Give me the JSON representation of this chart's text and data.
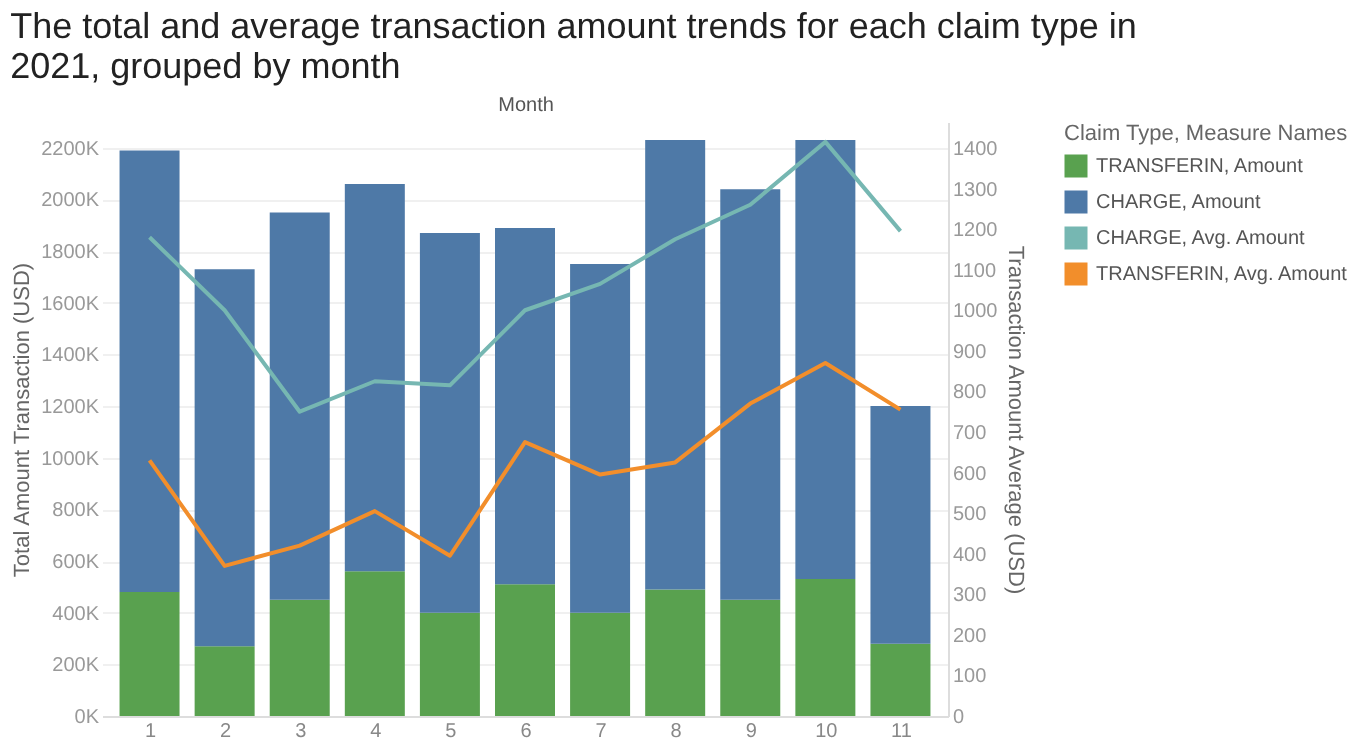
{
  "chart_data": {
    "type": "bar",
    "title": "The total and average transaction amount trends for each claim type in 2021, grouped by month",
    "xlabel": "Month",
    "ylabel": "Total Amount Transaction (USD)",
    "y2label": "Transaction Amount Average (USD)",
    "legend_title": "Claim Type, Measure Names",
    "categories": [
      "1",
      "2",
      "3",
      "4",
      "5",
      "6",
      "7",
      "8",
      "9",
      "10",
      "11"
    ],
    "stacked": true,
    "grid": "y",
    "legend": "right",
    "ylim": [
      0,
      2300000
    ],
    "yticks": [
      {
        "value": 0,
        "label": "0K"
      },
      {
        "value": 200000,
        "label": "200K"
      },
      {
        "value": 400000,
        "label": "400K"
      },
      {
        "value": 600000,
        "label": "600K"
      },
      {
        "value": 800000,
        "label": "800K"
      },
      {
        "value": 1000000,
        "label": "1000K"
      },
      {
        "value": 1200000,
        "label": "1200K"
      },
      {
        "value": 1400000,
        "label": "1400K"
      },
      {
        "value": 1600000,
        "label": "1600K"
      },
      {
        "value": 1800000,
        "label": "1800K"
      },
      {
        "value": 2000000,
        "label": "2000K"
      },
      {
        "value": 2200000,
        "label": "2200K"
      }
    ],
    "y2lim": [
      0,
      1464
    ],
    "y2ticks": [
      0,
      100,
      200,
      300,
      400,
      500,
      600,
      700,
      800,
      900,
      1000,
      1100,
      1200,
      1300,
      1400
    ],
    "series": [
      {
        "name": "TRANSFERIN, Amount",
        "color": "#59a14f",
        "values": [
          480000,
          270000,
          450000,
          560000,
          400000,
          510000,
          400000,
          490000,
          450000,
          530000,
          280000
        ]
      },
      {
        "name": "CHARGE, Amount",
        "color": "#4e79a7",
        "values": [
          1710000,
          1460000,
          1500000,
          1500000,
          1470000,
          1380000,
          1350000,
          1740000,
          1590000,
          1700000,
          920000
        ]
      },
      {
        "name": "CHARGE, Avg. Amount",
        "color": "#76b7b2",
        "type": "line",
        "axis": "y2",
        "values": [
          1180,
          1000,
          750,
          825,
          815,
          1000,
          1065,
          1175,
          1260,
          1415,
          1195
        ]
      },
      {
        "name": "TRANSFERIN, Avg. Amount",
        "color": "#f28e2b",
        "type": "line",
        "axis": "y2",
        "values": [
          630,
          370,
          420,
          505,
          395,
          675,
          595,
          625,
          770,
          870,
          755
        ]
      }
    ]
  }
}
